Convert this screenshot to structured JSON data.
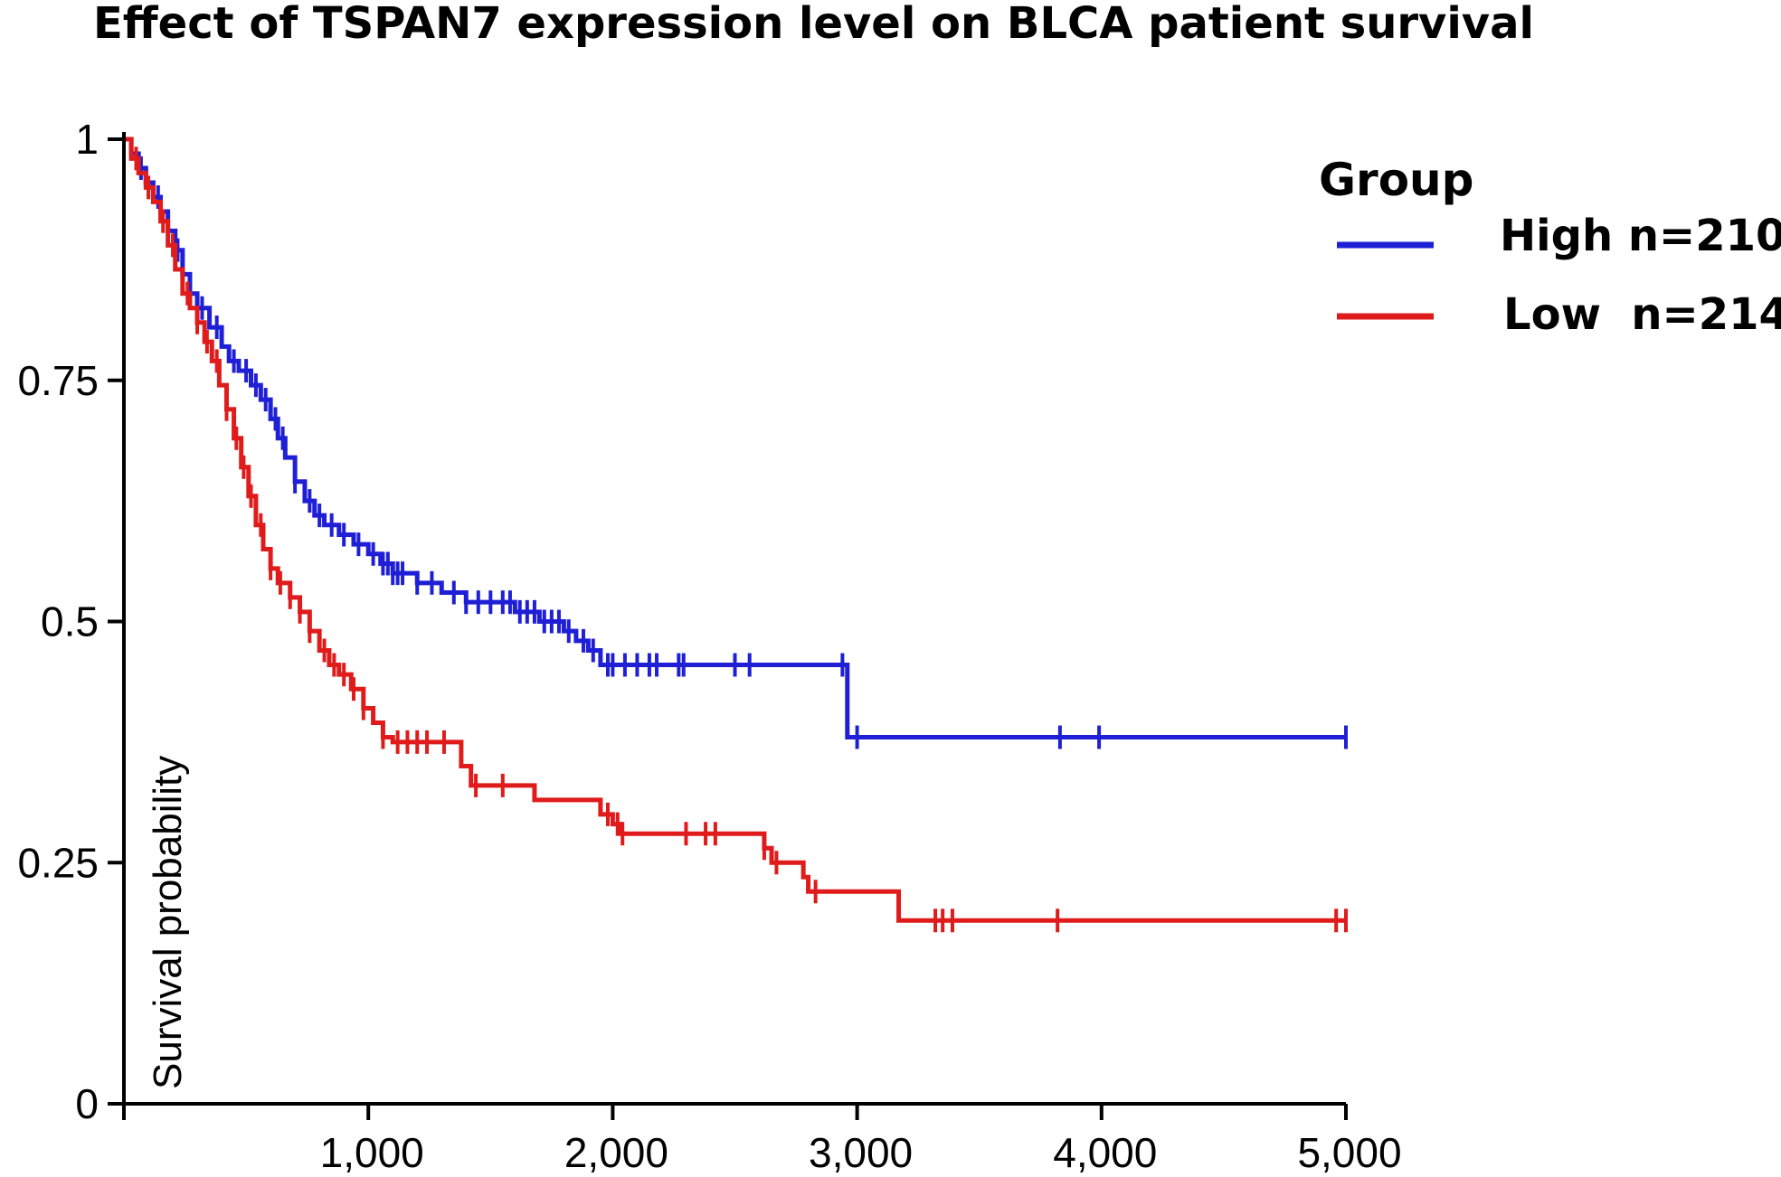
{
  "chart_data": {
    "type": "line",
    "title": "Effect of TSPAN7 expression level on BLCA patient survival",
    "xlabel": "",
    "ylabel": "Survival probability",
    "xlim": [
      0,
      5000
    ],
    "ylim": [
      0,
      1
    ],
    "x_ticks": [
      {
        "value": 1000,
        "label": "1,000"
      },
      {
        "value": 2000,
        "label": "2,000"
      },
      {
        "value": 3000,
        "label": "3,000"
      },
      {
        "value": 4000,
        "label": "4,000"
      },
      {
        "value": 5000,
        "label": "5,000"
      }
    ],
    "y_ticks": [
      {
        "value": 0,
        "label": "0"
      },
      {
        "value": 0.25,
        "label": "0.25"
      },
      {
        "value": 0.5,
        "label": "0.5"
      },
      {
        "value": 0.75,
        "label": "0.75"
      },
      {
        "value": 1,
        "label": "1"
      }
    ],
    "legend": {
      "title": "Group",
      "position": "top-right",
      "entries": [
        {
          "label": "High n=210",
          "color": "#1f1fd6"
        },
        {
          "label": "Low  n=214",
          "color": "#e01b1b"
        }
      ]
    },
    "series": [
      {
        "name": "High n=210",
        "color": "#1f1fd6",
        "steps": [
          [
            0,
            1.0
          ],
          [
            30,
            0.985
          ],
          [
            60,
            0.97
          ],
          [
            90,
            0.955
          ],
          [
            120,
            0.94
          ],
          [
            150,
            0.925
          ],
          [
            180,
            0.905
          ],
          [
            210,
            0.885
          ],
          [
            240,
            0.86
          ],
          [
            270,
            0.84
          ],
          [
            300,
            0.825
          ],
          [
            350,
            0.805
          ],
          [
            400,
            0.785
          ],
          [
            430,
            0.77
          ],
          [
            470,
            0.76
          ],
          [
            520,
            0.745
          ],
          [
            560,
            0.73
          ],
          [
            600,
            0.71
          ],
          [
            630,
            0.69
          ],
          [
            660,
            0.67
          ],
          [
            700,
            0.645
          ],
          [
            740,
            0.625
          ],
          [
            780,
            0.61
          ],
          [
            820,
            0.6
          ],
          [
            880,
            0.59
          ],
          [
            940,
            0.58
          ],
          [
            1000,
            0.57
          ],
          [
            1050,
            0.56
          ],
          [
            1100,
            0.55
          ],
          [
            1200,
            0.54
          ],
          [
            1300,
            0.53
          ],
          [
            1400,
            0.52
          ],
          [
            1600,
            0.51
          ],
          [
            1700,
            0.5
          ],
          [
            1800,
            0.49
          ],
          [
            1850,
            0.48
          ],
          [
            1900,
            0.47
          ],
          [
            1950,
            0.455
          ],
          [
            2950,
            0.455
          ],
          [
            2960,
            0.38
          ],
          [
            5000,
            0.38
          ]
        ],
        "censor_times": [
          70,
          140,
          220,
          320,
          380,
          450,
          500,
          540,
          580,
          620,
          650,
          700,
          760,
          800,
          850,
          900,
          960,
          1020,
          1060,
          1080,
          1100,
          1120,
          1140,
          1200,
          1260,
          1350,
          1400,
          1450,
          1500,
          1550,
          1580,
          1620,
          1650,
          1680,
          1720,
          1750,
          1780,
          1820,
          1880,
          1920,
          1980,
          2000,
          2050,
          2100,
          2150,
          2180,
          2270,
          2290,
          2500,
          2560,
          2940,
          3000,
          3830,
          3990,
          5000
        ]
      },
      {
        "name": "Low  n=214",
        "color": "#e01b1b",
        "steps": [
          [
            0,
            1.0
          ],
          [
            30,
            0.98
          ],
          [
            60,
            0.965
          ],
          [
            90,
            0.95
          ],
          [
            120,
            0.935
          ],
          [
            150,
            0.915
          ],
          [
            180,
            0.89
          ],
          [
            210,
            0.865
          ],
          [
            240,
            0.84
          ],
          [
            270,
            0.825
          ],
          [
            300,
            0.81
          ],
          [
            330,
            0.79
          ],
          [
            360,
            0.77
          ],
          [
            390,
            0.745
          ],
          [
            420,
            0.72
          ],
          [
            450,
            0.69
          ],
          [
            480,
            0.66
          ],
          [
            510,
            0.63
          ],
          [
            540,
            0.6
          ],
          [
            570,
            0.575
          ],
          [
            600,
            0.555
          ],
          [
            630,
            0.54
          ],
          [
            680,
            0.525
          ],
          [
            720,
            0.51
          ],
          [
            760,
            0.49
          ],
          [
            800,
            0.47
          ],
          [
            840,
            0.455
          ],
          [
            880,
            0.445
          ],
          [
            930,
            0.43
          ],
          [
            980,
            0.41
          ],
          [
            1020,
            0.395
          ],
          [
            1060,
            0.38
          ],
          [
            1100,
            0.375
          ],
          [
            1380,
            0.35
          ],
          [
            1420,
            0.33
          ],
          [
            1680,
            0.315
          ],
          [
            1950,
            0.3
          ],
          [
            2000,
            0.29
          ],
          [
            2030,
            0.28
          ],
          [
            2620,
            0.265
          ],
          [
            2650,
            0.25
          ],
          [
            2780,
            0.235
          ],
          [
            2800,
            0.22
          ],
          [
            3170,
            0.19
          ],
          [
            5000,
            0.19
          ]
        ],
        "censor_times": [
          50,
          100,
          160,
          200,
          260,
          300,
          340,
          380,
          420,
          460,
          490,
          520,
          560,
          600,
          640,
          680,
          720,
          760,
          820,
          860,
          900,
          940,
          980,
          1060,
          1120,
          1160,
          1200,
          1240,
          1310,
          1440,
          1550,
          1980,
          2020,
          2040,
          2300,
          2380,
          2420,
          2620,
          2670,
          2830,
          3320,
          3350,
          3390,
          3820,
          4960,
          5000
        ]
      }
    ]
  }
}
